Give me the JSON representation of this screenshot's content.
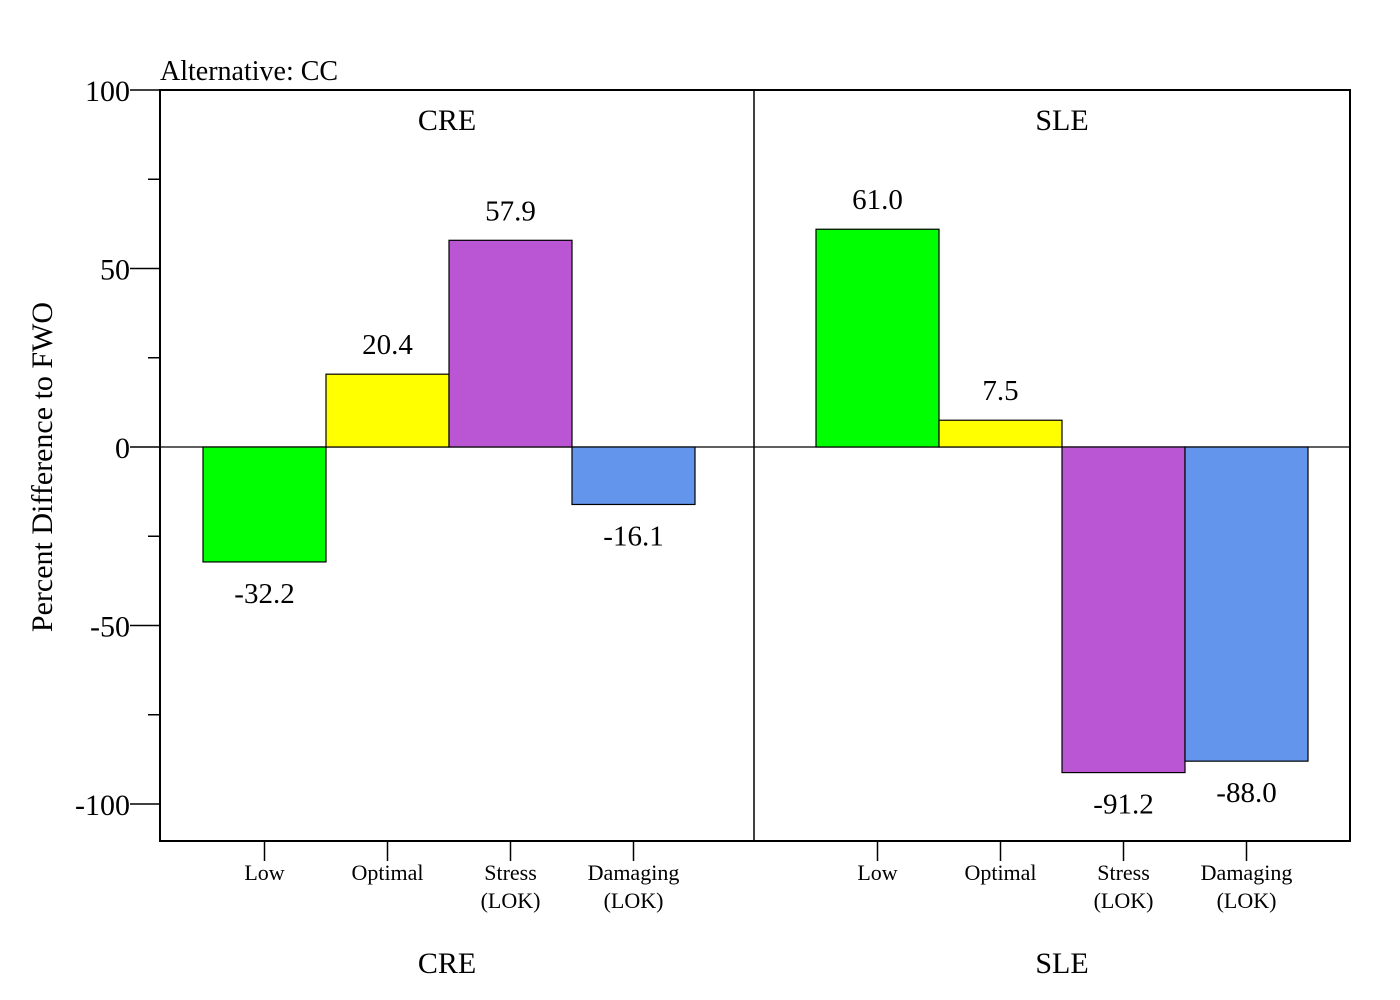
{
  "chart_data": {
    "type": "bar",
    "title": "Alternative: CC",
    "ylabel": "Percent Difference to FWO",
    "xlabel": "",
    "ylim": [
      -110,
      100
    ],
    "yticks": [
      100,
      50,
      0,
      -50,
      -100
    ],
    "ytick_labels": [
      "100",
      "50",
      "0",
      "-50",
      "-100"
    ],
    "grid": false,
    "legend": "none",
    "category_labels": [
      [
        "Low"
      ],
      [
        "Optimal"
      ],
      [
        "Stress",
        "(LOK)"
      ],
      [
        "Damaging",
        "(LOK)"
      ]
    ],
    "categories": [
      "Low",
      "Optimal",
      "Stress (LOK)",
      "Damaging (LOK)"
    ],
    "colors": [
      "#00ff00",
      "#ffff00",
      "#ba55d3",
      "#6495ed"
    ],
    "panels": [
      {
        "title": "CRE",
        "bottom_label": "CRE",
        "values": [
          -32.2,
          20.4,
          57.9,
          -16.1
        ],
        "value_labels": [
          "-32.2",
          "20.4",
          "57.9",
          "-16.1"
        ]
      },
      {
        "title": "SLE",
        "bottom_label": "SLE",
        "values": [
          61.0,
          7.5,
          -91.2,
          -88.0
        ],
        "value_labels": [
          "61.0",
          "7.5",
          "-91.2",
          "-88.0"
        ]
      }
    ]
  }
}
